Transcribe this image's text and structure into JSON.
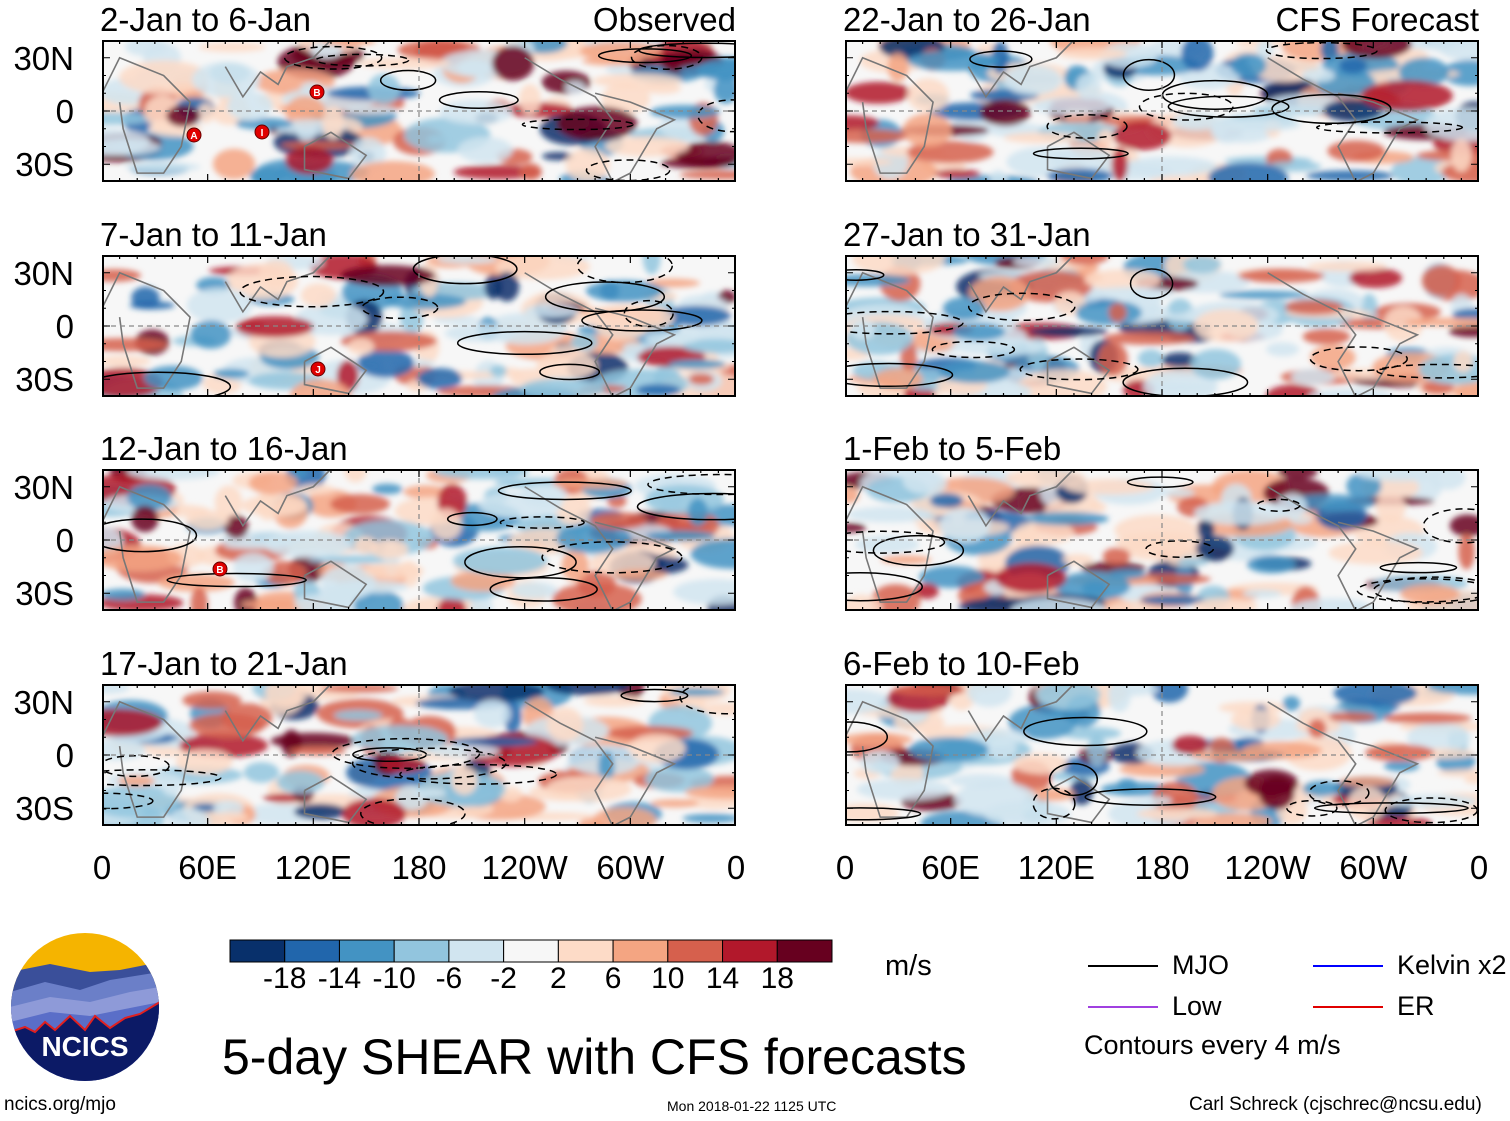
{
  "chart_data": {
    "type": "heatmap",
    "title": "5-day SHEAR with CFS forecasts",
    "variable_units": "m/s",
    "x_ticks": [
      "0",
      "60E",
      "120E",
      "180",
      "120W",
      "60W",
      "0"
    ],
    "y_ticks": [
      "30N",
      "0",
      "30S"
    ],
    "colorbar": {
      "labels": [
        "-18",
        "-14",
        "-10",
        "-6",
        "-2",
        "2",
        "6",
        "10",
        "14",
        "18"
      ],
      "colors": [
        "#08306b",
        "#2166ac",
        "#4393c3",
        "#92c5de",
        "#d1e5f0",
        "#f7f7f7",
        "#fddbc7",
        "#f4a582",
        "#d6604d",
        "#b2182b",
        "#67001f"
      ]
    },
    "panels": [
      {
        "title": "2-Jan to 6-Jan",
        "corner_label": "Observed",
        "column": "observed",
        "storms": [
          "A",
          "I",
          "B"
        ]
      },
      {
        "title": "7-Jan to 11-Jan",
        "corner_label": "",
        "column": "observed",
        "storms": [
          "J"
        ]
      },
      {
        "title": "12-Jan to 16-Jan",
        "corner_label": "",
        "column": "observed",
        "storms": [
          "B"
        ]
      },
      {
        "title": "17-Jan to 21-Jan",
        "corner_label": "",
        "column": "observed",
        "storms": []
      },
      {
        "title": "22-Jan to 26-Jan",
        "corner_label": "CFS Forecast",
        "column": "forecast",
        "storms": []
      },
      {
        "title": "27-Jan to 31-Jan",
        "corner_label": "",
        "column": "forecast",
        "storms": []
      },
      {
        "title": "1-Feb to 5-Feb",
        "corner_label": "",
        "column": "forecast",
        "storms": []
      },
      {
        "title": "6-Feb to 10-Feb",
        "corner_label": "",
        "column": "forecast",
        "storms": []
      }
    ],
    "legend": {
      "items": [
        {
          "label": "MJO",
          "color": "#000000"
        },
        {
          "label": "Kelvin x2",
          "color": "#0000ff"
        },
        {
          "label": "Low",
          "color": "#a040e0"
        },
        {
          "label": "ER",
          "color": "#e00000"
        }
      ],
      "note": "Contours every 4 m/s"
    }
  },
  "footer": {
    "logo_text": "NCICS",
    "url": "ncics.org/mjo",
    "timestamp": "Mon 2018-01-22 1125 UTC",
    "credit": "Carl Schreck (cjschrec@ncsu.edu)"
  }
}
